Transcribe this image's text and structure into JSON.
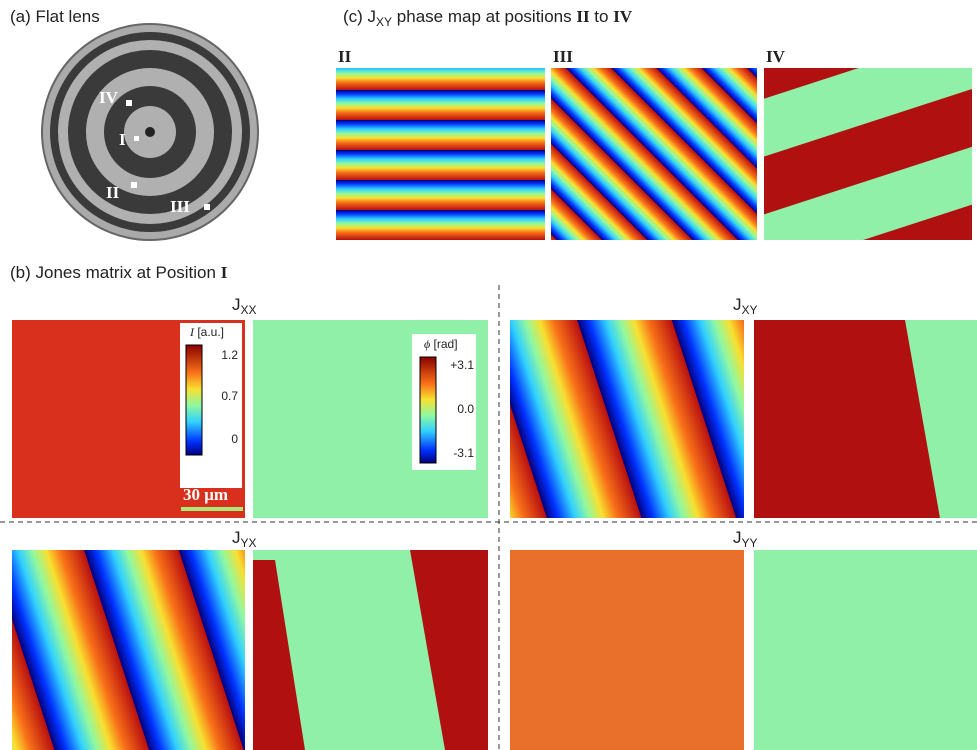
{
  "panel_a": {
    "title": "(a) Flat lens",
    "positions": [
      "IV",
      "I",
      "II",
      "III"
    ]
  },
  "panel_c": {
    "title_parts": [
      "(c) J",
      "XY",
      " phase map at positions ",
      "II",
      " to ",
      "IV"
    ],
    "labels": [
      "II",
      "III",
      "IV"
    ]
  },
  "panel_b": {
    "title_parts": [
      "(b) Jones matrix at Position ",
      "I"
    ],
    "matrix": [
      {
        "name": "J",
        "sub": "XX"
      },
      {
        "name": "J",
        "sub": "XY"
      },
      {
        "name": "J",
        "sub": "YX"
      },
      {
        "name": "J",
        "sub": "YY"
      }
    ],
    "intensity_bar": {
      "symbol": "I",
      "unit": " [a.u.]",
      "ticks": [
        "1.2",
        "0.7",
        "0"
      ]
    },
    "phase_bar": {
      "symbol": "ϕ",
      "unit": " [rad]",
      "ticks": [
        "+3.1",
        "0.0",
        "-3.1"
      ]
    },
    "scale_bar": "30 μm"
  }
}
